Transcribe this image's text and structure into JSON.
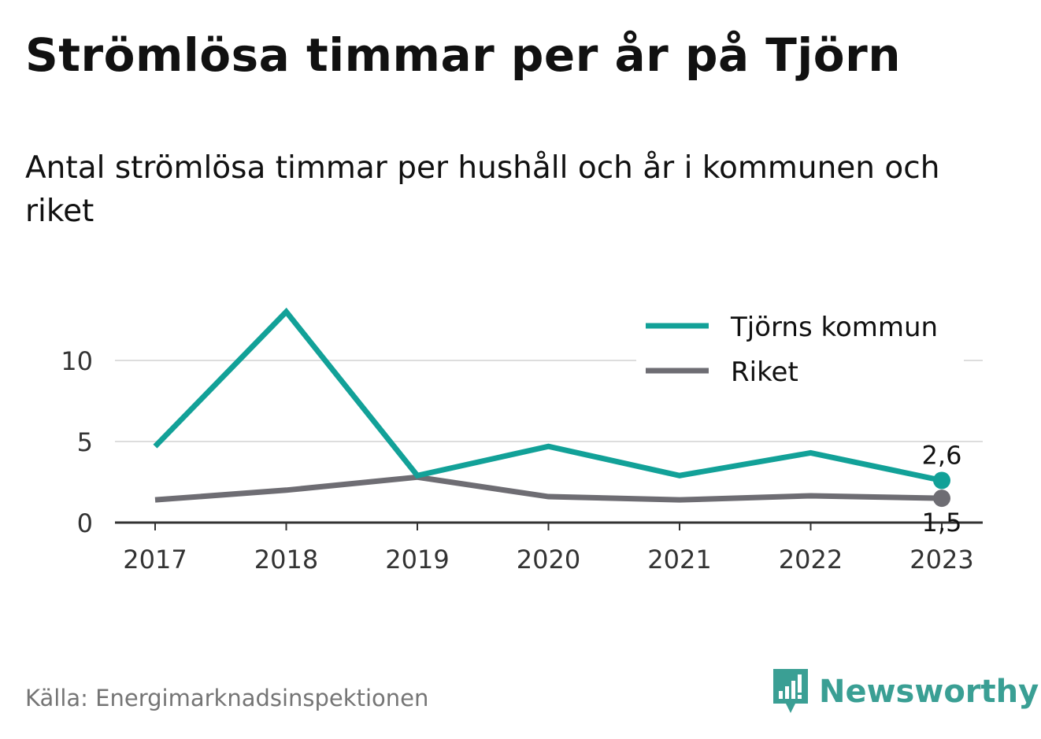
{
  "title": "Strömlösa timmar per år på Tjörn",
  "subtitle": "Antal strömlösa timmar per hushåll och år i kommunen och riket",
  "source": "Källa: Energimarknadsinspektionen",
  "brand": {
    "name": "Newsworthy",
    "icon": "newsworthy-logo-icon",
    "color": "#3a9f94"
  },
  "chart_data": {
    "type": "line",
    "x": [
      "2017",
      "2018",
      "2019",
      "2020",
      "2021",
      "2022",
      "2023"
    ],
    "yticks": [
      "0",
      "5",
      "10"
    ],
    "ylim": [
      0,
      13
    ],
    "grid": true,
    "legend_position": "top-right",
    "series": [
      {
        "name": "Tjörns kommun",
        "color": "#12a198",
        "values": [
          4.7,
          13.0,
          2.9,
          4.7,
          2.9,
          4.3,
          2.6
        ],
        "end_label": "2,6"
      },
      {
        "name": "Riket",
        "color": "#6e6d73",
        "values": [
          1.4,
          2.0,
          2.8,
          1.6,
          1.4,
          1.65,
          1.5
        ],
        "end_label": "1,5"
      }
    ]
  }
}
